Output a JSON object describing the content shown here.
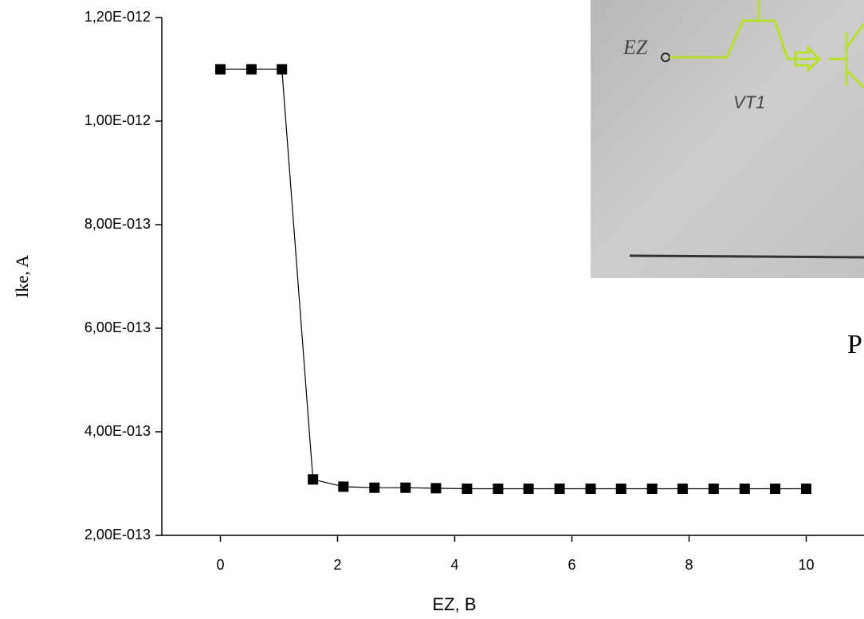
{
  "chart_data": {
    "type": "line",
    "x_label": "EZ, B",
    "y_label": "Ike, A",
    "x": [
      0,
      0.53,
      1.05,
      1.58,
      2.1,
      2.63,
      3.16,
      3.68,
      4.21,
      4.74,
      5.26,
      5.79,
      6.32,
      6.84,
      7.37,
      7.89,
      8.42,
      8.95,
      9.47,
      10
    ],
    "series": [
      {
        "color": "#000000",
        "values": [
          1.1e-12,
          1.1e-12,
          1.1e-12,
          3.08e-13,
          2.94e-13,
          2.92e-13,
          2.92e-13,
          2.91e-13,
          2.9e-13,
          2.9e-13,
          2.9e-13,
          2.9e-13,
          2.9e-13,
          2.9e-13,
          2.9e-13,
          2.9e-13,
          2.9e-13,
          2.9e-13,
          2.9e-13,
          2.9e-13
        ]
      }
    ],
    "xlim": [
      -1,
      11
    ],
    "xticks": [
      0,
      2,
      4,
      6,
      8,
      10
    ],
    "ylim": [
      2e-13,
      1.2e-12
    ],
    "yticks": [
      {
        "value": 2e-13,
        "label": "2,00E-013"
      },
      {
        "value": 4e-13,
        "label": "4,00E-013"
      },
      {
        "value": 6e-13,
        "label": "6,00E-013"
      },
      {
        "value": 8e-13,
        "label": "8,00E-013"
      },
      {
        "value": 1e-12,
        "label": "1,00E-012"
      },
      {
        "value": 1.2e-12,
        "label": "1,20E-012"
      }
    ],
    "inset_labels": [
      "EZ",
      "VT1"
    ],
    "annotation": "P"
  }
}
